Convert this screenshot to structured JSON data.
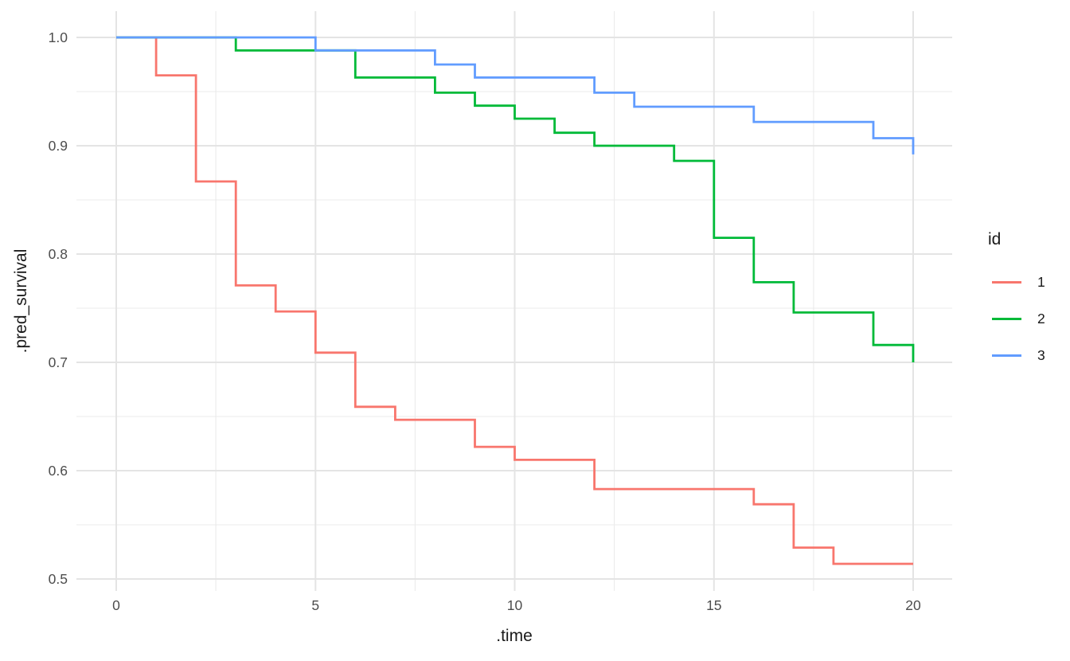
{
  "chart_data": {
    "type": "line",
    "step": "hv",
    "title": "",
    "xlabel": ".time",
    "ylabel": ".pred_survival",
    "xlim": [
      0,
      20
    ],
    "ylim": [
      0.5,
      1.0
    ],
    "grid": "major-and-minor",
    "legend_position": "right",
    "x_ticks": [
      0,
      5,
      10,
      15,
      20
    ],
    "x_tick_labels": [
      "0",
      "5",
      "10",
      "15",
      "20"
    ],
    "x_minor_ticks": [
      2.5,
      7.5,
      12.5,
      17.5
    ],
    "y_ticks": [
      0.5,
      0.6,
      0.7,
      0.8,
      0.9,
      1.0
    ],
    "y_tick_labels": [
      "0.5",
      "0.6",
      "0.7",
      "0.8",
      "0.9",
      "1.0"
    ],
    "y_minor_ticks": [
      0.55,
      0.65,
      0.75,
      0.85,
      0.95
    ],
    "series": [
      {
        "name": "1",
        "color": "#F8766D",
        "points": [
          [
            0,
            1.0
          ],
          [
            1,
            0.965
          ],
          [
            2,
            0.867
          ],
          [
            3,
            0.771
          ],
          [
            4,
            0.747
          ],
          [
            5,
            0.709
          ],
          [
            6,
            0.659
          ],
          [
            7,
            0.647
          ],
          [
            9,
            0.622
          ],
          [
            10,
            0.61
          ],
          [
            12,
            0.583
          ],
          [
            16,
            0.569
          ],
          [
            17,
            0.529
          ],
          [
            18,
            0.514
          ],
          [
            20,
            0.514
          ]
        ]
      },
      {
        "name": "2",
        "color": "#00BA38",
        "points": [
          [
            0,
            1.0
          ],
          [
            3,
            0.988
          ],
          [
            6,
            0.963
          ],
          [
            8,
            0.949
          ],
          [
            9,
            0.937
          ],
          [
            10,
            0.925
          ],
          [
            11,
            0.912
          ],
          [
            12,
            0.9
          ],
          [
            14,
            0.886
          ],
          [
            15,
            0.815
          ],
          [
            16,
            0.774
          ],
          [
            17,
            0.746
          ],
          [
            19,
            0.716
          ],
          [
            20,
            0.7
          ]
        ]
      },
      {
        "name": "3",
        "color": "#619CFF",
        "points": [
          [
            0,
            1.0
          ],
          [
            5,
            0.988
          ],
          [
            8,
            0.975
          ],
          [
            9,
            0.963
          ],
          [
            12,
            0.949
          ],
          [
            13,
            0.936
          ],
          [
            16,
            0.922
          ],
          [
            19,
            0.907
          ],
          [
            20,
            0.892
          ]
        ]
      }
    ]
  },
  "axes": {
    "x": {
      "title": ".time"
    },
    "y": {
      "title": ".pred_survival"
    }
  },
  "legend": {
    "title": "id",
    "items": [
      {
        "label": "1",
        "color": "#F8766D"
      },
      {
        "label": "2",
        "color": "#00BA38"
      },
      {
        "label": "3",
        "color": "#619CFF"
      }
    ]
  },
  "style": {
    "background": "#FFFFFF",
    "grid_major_color": "#E4E4E4",
    "grid_minor_color": "#EBEBEB",
    "tick_label_color": "#4D4D4D",
    "title_color": "#1A1A1A",
    "line_width": 2.8
  }
}
